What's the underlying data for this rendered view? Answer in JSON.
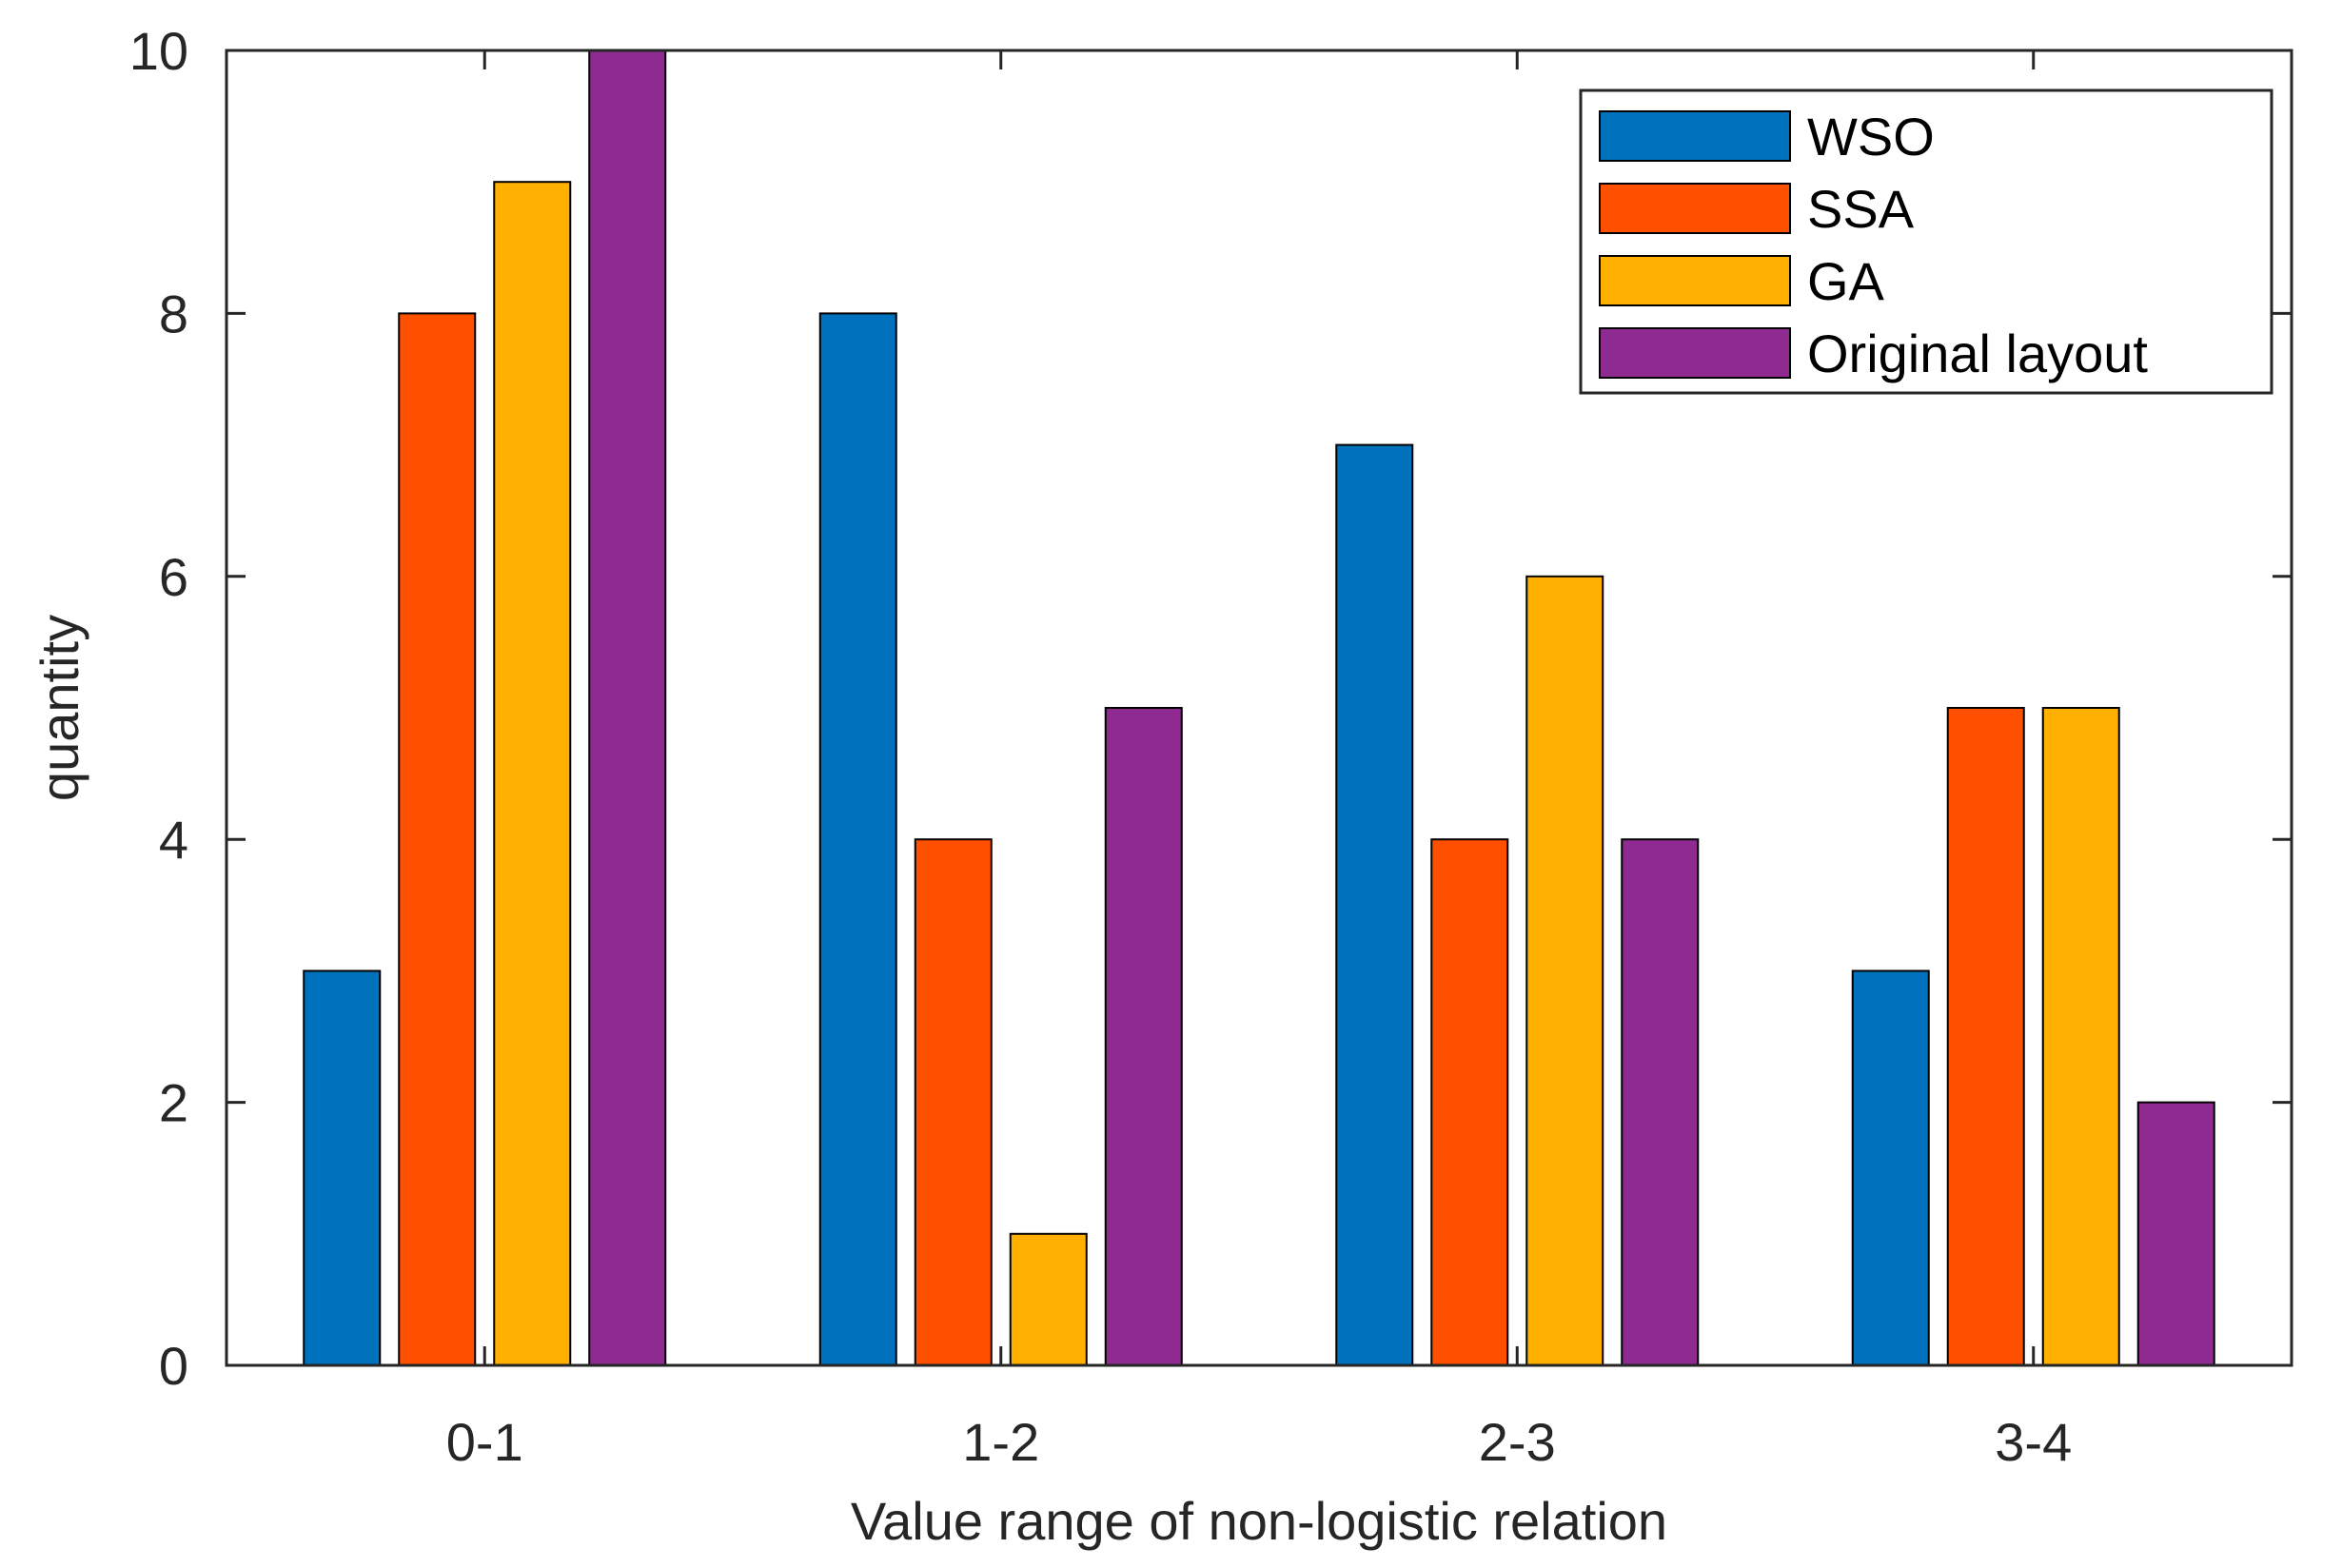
{
  "chart_data": {
    "type": "bar",
    "title": "",
    "xlabel": "Value range of non-logistic relation",
    "ylabel": "quantity",
    "categories": [
      "0-1",
      "1-2",
      "2-3",
      "3-4"
    ],
    "ylim": [
      0,
      10
    ],
    "yticks": [
      0,
      2,
      4,
      6,
      8,
      10
    ],
    "yticklabels": [
      "0",
      "2",
      "4",
      "6",
      "8",
      "10"
    ],
    "grid": false,
    "legend_position": "top-right",
    "series": [
      {
        "name": "WSO",
        "color": "#0072BD",
        "values": [
          3,
          8,
          7,
          3
        ]
      },
      {
        "name": "SSA",
        "color": "#FF5000",
        "values": [
          8,
          4,
          4,
          5
        ]
      },
      {
        "name": "GA",
        "color": "#FFB000",
        "values": [
          9,
          1,
          6,
          5
        ]
      },
      {
        "name": "Original layout",
        "color": "#8E2A90",
        "values": [
          10,
          5,
          4,
          2
        ]
      }
    ]
  }
}
